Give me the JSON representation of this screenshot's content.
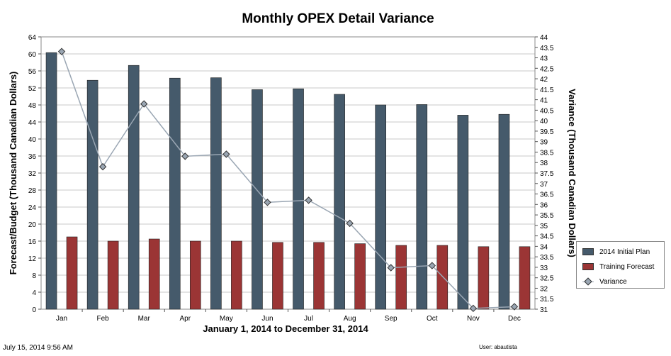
{
  "chart_data": {
    "type": "bar",
    "title": "Monthly OPEX Detail Variance",
    "xlabel": "January 1, 2014 to December 31, 2014",
    "ylabel": "Forecast/Budget (Thousand Canadian Dollars)",
    "y2label": "Variance (Thousand Canadian Dollars)",
    "categories": [
      "Jan",
      "Feb",
      "Mar",
      "Apr",
      "May",
      "Jun",
      "Jul",
      "Aug",
      "Sep",
      "Oct",
      "Nov",
      "Dec"
    ],
    "ylim": [
      0,
      64
    ],
    "y2lim": [
      31,
      44
    ],
    "yticks": [
      "0",
      "4",
      "8",
      "12",
      "16",
      "20",
      "24",
      "28",
      "32",
      "36",
      "40",
      "44",
      "48",
      "52",
      "56",
      "60",
      "64"
    ],
    "y2ticks": [
      "31",
      "31.5",
      "32",
      "32.5",
      "33",
      "33.5",
      "34",
      "34.5",
      "35",
      "35.5",
      "36",
      "36.5",
      "37",
      "37.5",
      "38",
      "38.5",
      "39",
      "39.5",
      "40",
      "40.5",
      "41",
      "41.5",
      "42",
      "42.5",
      "43",
      "43.5",
      "44"
    ],
    "grid": true,
    "legend_position": "right",
    "series": [
      {
        "name": "2014 Initial Plan",
        "type": "bar",
        "axis": "left",
        "color": "#455a6b",
        "values": [
          60.3,
          53.8,
          57.3,
          54.3,
          54.4,
          51.6,
          51.8,
          50.5,
          48.0,
          48.1,
          45.6,
          45.8
        ]
      },
      {
        "name": "Training Forecast",
        "type": "bar",
        "axis": "left",
        "color": "#9b3535",
        "values": [
          17.0,
          16.0,
          16.5,
          16.0,
          16.0,
          15.7,
          15.7,
          15.4,
          15.0,
          15.0,
          14.7,
          14.7
        ]
      },
      {
        "name": "Variance",
        "type": "line",
        "axis": "right",
        "color": "#9aa6b3",
        "values": [
          43.3,
          37.8,
          40.8,
          38.3,
          38.4,
          36.1,
          36.2,
          35.1,
          32.98,
          33.08,
          31.04,
          31.12
        ]
      }
    ]
  },
  "footer": {
    "timestamp": "July 15, 2014 9:56 AM",
    "user": "User: abautista"
  }
}
